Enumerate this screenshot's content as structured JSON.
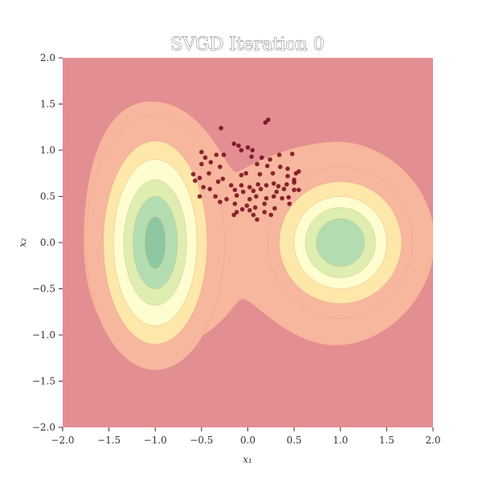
{
  "chart_data": {
    "type": "contour",
    "title": "SVGD Iteration 0",
    "xlabel": "x₁",
    "ylabel": "x₂",
    "xlim": [
      -2.0,
      2.0
    ],
    "ylim": [
      -2.0,
      2.0
    ],
    "x_ticks": [
      "−2.0",
      "−1.5",
      "−1.0",
      "−0.5",
      "0.0",
      "0.5",
      "1.0",
      "1.5",
      "2.0"
    ],
    "y_ticks": [
      "2.0",
      "1.5",
      "1.0",
      "0.5",
      "0.0",
      "−0.5",
      "−1.0",
      "−1.5",
      "−2.0"
    ],
    "grid": false,
    "colormap": [
      "#e38e93",
      "#f7b69e",
      "#fde7a9",
      "#fefdd0",
      "#ddeeb0",
      "#b3ddb0",
      "#8cc7a2"
    ],
    "contour_background_color": "#e38e93",
    "contour_regions": [
      {
        "name": "left-mode",
        "center": [
          -1.0,
          0.0
        ],
        "radii_x": [
          0.75,
          0.56,
          0.45,
          0.34,
          0.24,
          0.11
        ],
        "radii_y": [
          1.38,
          1.1,
          0.9,
          0.68,
          0.5,
          0.28
        ]
      },
      {
        "name": "right-mode",
        "center": [
          1.0,
          0.0
        ],
        "radii_x": [
          0.78,
          0.66,
          0.5,
          0.38,
          0.26
        ],
        "radii_y": [
          0.82,
          0.66,
          0.5,
          0.38,
          0.26
        ]
      }
    ],
    "particle_color": "#6b0012",
    "particles": [
      {
        "x": -0.29,
        "y": 1.24
      },
      {
        "x": 0.22,
        "y": 1.33
      },
      {
        "x": 0.19,
        "y": 1.3
      },
      {
        "x": -0.15,
        "y": 1.07
      },
      {
        "x": -0.1,
        "y": 1.05
      },
      {
        "x": 0.0,
        "y": 1.03
      },
      {
        "x": 0.05,
        "y": 1.0
      },
      {
        "x": -0.07,
        "y": 1.0
      },
      {
        "x": -0.5,
        "y": 0.98
      },
      {
        "x": -0.34,
        "y": 0.95
      },
      {
        "x": -0.26,
        "y": 0.95
      },
      {
        "x": 0.04,
        "y": 0.93
      },
      {
        "x": 0.15,
        "y": 0.92
      },
      {
        "x": 0.24,
        "y": 0.9
      },
      {
        "x": 0.34,
        "y": 0.95
      },
      {
        "x": 0.48,
        "y": 0.96
      },
      {
        "x": -0.46,
        "y": 0.92
      },
      {
        "x": -0.5,
        "y": 0.85
      },
      {
        "x": -0.4,
        "y": 0.87
      },
      {
        "x": -0.3,
        "y": 0.82
      },
      {
        "x": 0.1,
        "y": 0.85
      },
      {
        "x": 0.21,
        "y": 0.83
      },
      {
        "x": 0.35,
        "y": 0.82
      },
      {
        "x": 0.43,
        "y": 0.8
      },
      {
        "x": 0.27,
        "y": 0.75
      },
      {
        "x": -0.52,
        "y": 0.7
      },
      {
        "x": -0.42,
        "y": 0.75
      },
      {
        "x": -0.07,
        "y": 0.73
      },
      {
        "x": -0.02,
        "y": 0.75
      },
      {
        "x": 0.13,
        "y": 0.74
      },
      {
        "x": 0.43,
        "y": 0.72
      },
      {
        "x": 0.52,
        "y": 0.75
      },
      {
        "x": 0.55,
        "y": 0.77
      },
      {
        "x": -0.59,
        "y": 0.74
      },
      {
        "x": -0.57,
        "y": 0.67
      },
      {
        "x": -0.32,
        "y": 0.66
      },
      {
        "x": -0.27,
        "y": 0.69
      },
      {
        "x": -0.18,
        "y": 0.62
      },
      {
        "x": -0.07,
        "y": 0.62
      },
      {
        "x": 0.02,
        "y": 0.6
      },
      {
        "x": 0.11,
        "y": 0.63
      },
      {
        "x": 0.2,
        "y": 0.62
      },
      {
        "x": 0.28,
        "y": 0.64
      },
      {
        "x": 0.33,
        "y": 0.61
      },
      {
        "x": 0.42,
        "y": 0.63
      },
      {
        "x": 0.5,
        "y": 0.68
      },
      {
        "x": -0.48,
        "y": 0.6
      },
      {
        "x": -0.41,
        "y": 0.58
      },
      {
        "x": -0.14,
        "y": 0.57
      },
      {
        "x": -0.05,
        "y": 0.55
      },
      {
        "x": 0.06,
        "y": 0.56
      },
      {
        "x": 0.14,
        "y": 0.58
      },
      {
        "x": 0.31,
        "y": 0.55
      },
      {
        "x": 0.39,
        "y": 0.58
      },
      {
        "x": 0.5,
        "y": 0.57
      },
      {
        "x": -0.52,
        "y": 0.5
      },
      {
        "x": -0.35,
        "y": 0.5
      },
      {
        "x": -0.23,
        "y": 0.47
      },
      {
        "x": -0.12,
        "y": 0.51
      },
      {
        "x": 0.02,
        "y": 0.47
      },
      {
        "x": 0.09,
        "y": 0.5
      },
      {
        "x": 0.2,
        "y": 0.48
      },
      {
        "x": 0.28,
        "y": 0.5
      },
      {
        "x": 0.37,
        "y": 0.48
      },
      {
        "x": 0.44,
        "y": 0.49
      },
      {
        "x": -0.3,
        "y": 0.44
      },
      {
        "x": -0.14,
        "y": 0.42
      },
      {
        "x": -0.01,
        "y": 0.4
      },
      {
        "x": 0.08,
        "y": 0.38
      },
      {
        "x": 0.18,
        "y": 0.42
      },
      {
        "x": 0.29,
        "y": 0.37
      },
      {
        "x": 0.45,
        "y": 0.42
      },
      {
        "x": -0.12,
        "y": 0.33
      },
      {
        "x": 0.02,
        "y": 0.35
      },
      {
        "x": 0.18,
        "y": 0.33
      },
      {
        "x": -0.15,
        "y": 0.3
      },
      {
        "x": 0.06,
        "y": 0.3
      },
      {
        "x": 0.25,
        "y": 0.3
      },
      {
        "x": 0.1,
        "y": 0.25
      },
      {
        "x": -0.06,
        "y": 0.36
      },
      {
        "x": 0.55,
        "y": 0.57
      },
      {
        "x": 0.5,
        "y": 0.65
      }
    ]
  }
}
